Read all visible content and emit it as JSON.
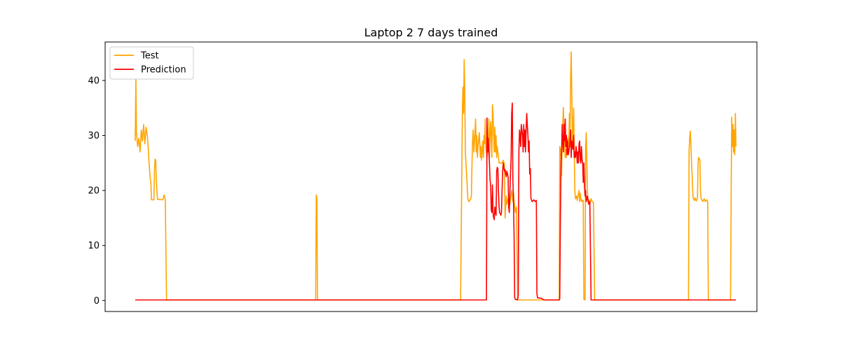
{
  "chart_data": {
    "type": "line",
    "title": "Laptop 2 7 days trained",
    "xlabel": "",
    "ylabel": "",
    "xlim": [
      0,
      1000
    ],
    "ylim": [
      -2,
      47
    ],
    "x_ticks_shown": false,
    "y_ticks": [
      0,
      10,
      20,
      30,
      40
    ],
    "grid": false,
    "legend_position": "top-left",
    "series": [
      {
        "name": "Test",
        "color": "#ffa500",
        "points": [
          [
            0,
            29
          ],
          [
            1,
            40.2
          ],
          [
            2,
            30.5
          ],
          [
            4,
            28
          ],
          [
            6,
            29.5
          ],
          [
            8,
            27
          ],
          [
            10,
            31
          ],
          [
            12,
            29
          ],
          [
            14,
            32
          ],
          [
            16,
            28.5
          ],
          [
            18,
            31.5
          ],
          [
            20,
            30
          ],
          [
            22,
            27
          ],
          [
            23,
            25
          ],
          [
            25,
            22
          ],
          [
            26,
            21.5
          ],
          [
            27,
            18.3
          ],
          [
            31,
            18.3
          ],
          [
            32,
            24
          ],
          [
            33,
            25.7
          ],
          [
            34,
            25.5
          ],
          [
            35,
            22
          ],
          [
            36,
            20
          ],
          [
            37,
            18.4
          ],
          [
            46,
            18.3
          ],
          [
            48,
            19.2
          ],
          [
            50,
            18.3
          ],
          [
            52,
            0.1
          ],
          [
            300,
            0.1
          ],
          [
            301,
            19.2
          ],
          [
            302,
            18.5
          ],
          [
            303,
            0.1
          ],
          [
            541,
            0.1
          ],
          [
            544,
            35
          ],
          [
            545,
            38.8
          ],
          [
            546,
            34
          ],
          [
            547,
            43.8
          ],
          [
            548,
            38
          ],
          [
            549,
            27
          ],
          [
            550,
            25
          ],
          [
            552,
            21
          ],
          [
            553,
            18.5
          ],
          [
            555,
            18
          ],
          [
            558,
            18.5
          ],
          [
            559,
            19
          ],
          [
            560,
            25
          ],
          [
            561,
            29
          ],
          [
            562,
            31
          ],
          [
            563,
            27
          ],
          [
            564,
            28.5
          ],
          [
            566,
            33
          ],
          [
            567,
            27
          ],
          [
            568,
            30
          ],
          [
            569,
            26
          ],
          [
            570,
            28
          ],
          [
            572,
            30.5
          ],
          [
            573,
            28.5
          ],
          [
            574,
            26
          ],
          [
            575,
            28
          ],
          [
            576,
            25.5
          ],
          [
            578,
            29
          ],
          [
            579,
            26
          ],
          [
            580,
            30
          ],
          [
            581,
            28.5
          ],
          [
            582,
            33
          ],
          [
            583,
            28
          ],
          [
            585,
            26
          ],
          [
            587,
            28
          ],
          [
            588,
            33
          ],
          [
            589,
            26
          ],
          [
            590,
            30
          ],
          [
            591,
            32.5
          ],
          [
            592,
            30
          ],
          [
            593,
            26
          ],
          [
            594,
            35.6
          ],
          [
            595,
            34
          ],
          [
            596,
            30
          ],
          [
            597,
            27
          ],
          [
            598,
            31.5
          ],
          [
            599,
            27
          ],
          [
            600,
            30
          ],
          [
            601,
            26
          ],
          [
            602,
            28
          ],
          [
            605,
            25
          ],
          [
            610,
            25
          ],
          [
            612,
            25.5
          ],
          [
            614,
            24.8
          ],
          [
            615,
            15
          ],
          [
            616,
            17
          ],
          [
            617,
            19
          ],
          [
            618,
            17.5
          ],
          [
            620,
            18.5
          ],
          [
            623,
            17.5
          ],
          [
            626,
            20
          ],
          [
            628,
            18
          ],
          [
            629,
            19.5
          ],
          [
            630,
            18
          ],
          [
            632,
            16
          ],
          [
            634,
            17
          ],
          [
            636,
            0.1
          ],
          [
            700,
            0.1
          ],
          [
            705,
            0.1
          ],
          [
            706,
            28
          ],
          [
            707,
            27.5
          ],
          [
            708,
            26
          ],
          [
            709,
            22.7
          ],
          [
            710,
            30
          ],
          [
            711,
            32
          ],
          [
            712,
            35.1
          ],
          [
            713,
            30
          ],
          [
            714,
            29
          ],
          [
            715,
            26
          ],
          [
            716,
            27.5
          ],
          [
            717,
            26
          ],
          [
            718,
            28
          ],
          [
            719,
            29.5
          ],
          [
            720,
            29
          ],
          [
            721,
            28
          ],
          [
            722,
            34
          ],
          [
            723,
            28
          ],
          [
            724,
            40
          ],
          [
            725,
            45.2
          ],
          [
            726,
            38
          ],
          [
            727,
            28
          ],
          [
            728,
            30
          ],
          [
            729,
            35
          ],
          [
            730,
            28
          ],
          [
            731,
            20
          ],
          [
            732,
            18.5
          ],
          [
            734,
            19
          ],
          [
            735,
            18.2
          ],
          [
            738,
            20
          ],
          [
            739,
            18
          ],
          [
            740,
            19.5
          ],
          [
            741,
            18.5
          ],
          [
            742,
            18
          ],
          [
            743,
            18.3
          ],
          [
            744,
            18.1
          ],
          [
            745,
            18.2
          ],
          [
            746,
            0.2
          ],
          [
            748,
            0.1
          ],
          [
            749,
            28
          ],
          [
            750,
            30.5
          ],
          [
            751,
            25
          ],
          [
            752,
            20
          ],
          [
            753,
            18
          ],
          [
            755,
            18.3
          ],
          [
            756,
            17.5
          ],
          [
            758,
            18.5
          ],
          [
            760,
            18
          ],
          [
            762,
            17.8
          ],
          [
            764,
            0.1
          ],
          [
            920,
            0.1
          ],
          [
            921,
            27
          ],
          [
            922,
            29.5
          ],
          [
            923,
            30.8
          ],
          [
            924,
            28.5
          ],
          [
            925,
            25
          ],
          [
            926,
            23
          ],
          [
            927,
            20
          ],
          [
            928,
            18.5
          ],
          [
            930,
            18.2
          ],
          [
            931,
            18.7
          ],
          [
            933,
            18.1
          ],
          [
            935,
            18.6
          ],
          [
            936,
            25
          ],
          [
            937,
            26
          ],
          [
            939,
            25.5
          ],
          [
            940,
            20
          ],
          [
            941,
            18.5
          ],
          [
            944,
            18
          ],
          [
            946,
            18.5
          ],
          [
            948,
            18
          ],
          [
            950,
            18.3
          ],
          [
            952,
            18
          ],
          [
            953,
            0.1
          ],
          [
            990,
            0.1
          ],
          [
            991,
            20
          ],
          [
            992,
            33.3
          ],
          [
            993,
            28
          ],
          [
            994,
            32
          ],
          [
            995,
            27
          ],
          [
            996,
            31
          ],
          [
            997,
            26.5
          ],
          [
            998,
            34
          ],
          [
            999,
            28
          ]
        ]
      },
      {
        "name": "Prediction",
        "color": "#ff0000",
        "points": [
          [
            0,
            0.1
          ],
          [
            584,
            0.1
          ],
          [
            585,
            33.2
          ],
          [
            586,
            27
          ],
          [
            587,
            29.5
          ],
          [
            588,
            27
          ],
          [
            589,
            25
          ],
          [
            590,
            22
          ],
          [
            591,
            21
          ],
          [
            592,
            16.5
          ],
          [
            593,
            16
          ],
          [
            594,
            21
          ],
          [
            595,
            16
          ],
          [
            596,
            15
          ],
          [
            597,
            14.7
          ],
          [
            598,
            17
          ],
          [
            599,
            16
          ],
          [
            600,
            15.5
          ],
          [
            601,
            23.5
          ],
          [
            602,
            24.2
          ],
          [
            603,
            24
          ],
          [
            604,
            20
          ],
          [
            605,
            17
          ],
          [
            606,
            16
          ],
          [
            607,
            15.8
          ],
          [
            608,
            15.5
          ],
          [
            609,
            16
          ],
          [
            610,
            20
          ],
          [
            611,
            23.5
          ],
          [
            612,
            25
          ],
          [
            613,
            24
          ],
          [
            614,
            23.5
          ],
          [
            615,
            23.8
          ],
          [
            616,
            23
          ],
          [
            617,
            22.5
          ],
          [
            618,
            23.5
          ],
          [
            619,
            23
          ],
          [
            620,
            22.5
          ],
          [
            621,
            17
          ],
          [
            622,
            16
          ],
          [
            623,
            19.5
          ],
          [
            624,
            23
          ],
          [
            625,
            26
          ],
          [
            626,
            34
          ],
          [
            627,
            35.9
          ],
          [
            628,
            22
          ],
          [
            629,
            18
          ],
          [
            630,
            12
          ],
          [
            631,
            0.5
          ],
          [
            632,
            0.2
          ],
          [
            634,
            0.2
          ],
          [
            635,
            0.1
          ],
          [
            636,
            0.2
          ],
          [
            637,
            1
          ],
          [
            638,
            27
          ],
          [
            639,
            31
          ],
          [
            640,
            30
          ],
          [
            641,
            28
          ],
          [
            642,
            32
          ],
          [
            643,
            31
          ],
          [
            644,
            30
          ],
          [
            645,
            27
          ],
          [
            646,
            32
          ],
          [
            647,
            28
          ],
          [
            648,
            31
          ],
          [
            649,
            27
          ],
          [
            650,
            31
          ],
          [
            651,
            34
          ],
          [
            652,
            32
          ],
          [
            653,
            30
          ],
          [
            654,
            27
          ],
          [
            655,
            29
          ],
          [
            656,
            23
          ],
          [
            657,
            24
          ],
          [
            658,
            18.5
          ],
          [
            660,
            18
          ],
          [
            663,
            18.3
          ],
          [
            665,
            18
          ],
          [
            667,
            18.2
          ],
          [
            668,
            1.3
          ],
          [
            669,
            0.5
          ],
          [
            675,
            0.4
          ],
          [
            680,
            0.1
          ],
          [
            688,
            0.1
          ],
          [
            697,
            0.1
          ],
          [
            705,
            0.1
          ],
          [
            706,
            0.3
          ],
          [
            707,
            15
          ],
          [
            708,
            25
          ],
          [
            709,
            27
          ],
          [
            710,
            32
          ],
          [
            711,
            29
          ],
          [
            712,
            27
          ],
          [
            713,
            32
          ],
          [
            714,
            29
          ],
          [
            715,
            33
          ],
          [
            716,
            28
          ],
          [
            717,
            30
          ],
          [
            718,
            26.5
          ],
          [
            719,
            29
          ],
          [
            720,
            26.5
          ],
          [
            721,
            27
          ],
          [
            722,
            28
          ],
          [
            723,
            29
          ],
          [
            724,
            31
          ],
          [
            725,
            26
          ],
          [
            726,
            29
          ],
          [
            727,
            28
          ],
          [
            728,
            27.5
          ],
          [
            729,
            30
          ],
          [
            730,
            26
          ],
          [
            731,
            27
          ],
          [
            732,
            26
          ],
          [
            733,
            28
          ],
          [
            734,
            27
          ],
          [
            735,
            25
          ],
          [
            736,
            27
          ],
          [
            737,
            25
          ],
          [
            738,
            28.5
          ],
          [
            739,
            29
          ],
          [
            740,
            25.5
          ],
          [
            741,
            25
          ],
          [
            742,
            28
          ],
          [
            743,
            25.8
          ],
          [
            744,
            25
          ],
          [
            745,
            21.5
          ],
          [
            746,
            25
          ],
          [
            747,
            21
          ],
          [
            748,
            19
          ],
          [
            749,
            20
          ],
          [
            750,
            18
          ],
          [
            752,
            19
          ],
          [
            754,
            17.5
          ],
          [
            756,
            18
          ],
          [
            758,
            0.1
          ],
          [
            999,
            0.1
          ]
        ]
      }
    ]
  }
}
